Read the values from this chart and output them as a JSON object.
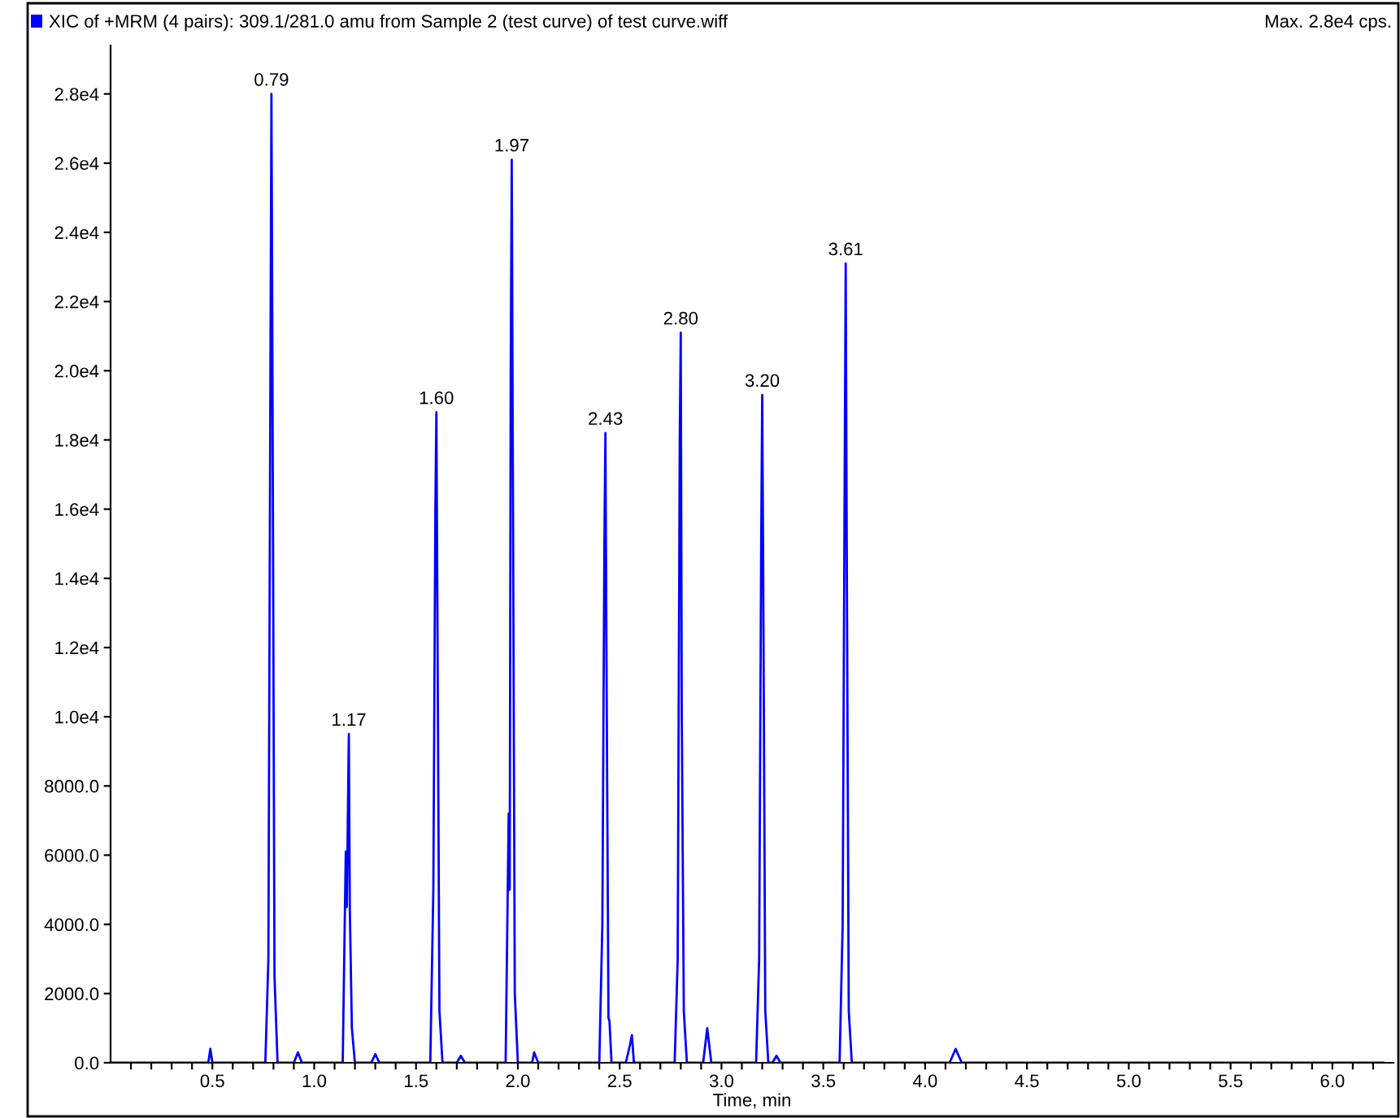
{
  "chart_data": {
    "type": "line",
    "title": "XIC of +MRM (4 pairs): 309.1/281.0 amu from Sample 2 (test curve) of test curve.wiff",
    "subtitle": "Max. 2.8e4 cps.",
    "xlabel": "Time, min",
    "x": [
      0.0,
      0.48,
      0.49,
      0.5,
      0.76,
      0.775,
      0.785,
      0.79,
      0.795,
      0.805,
      0.82,
      0.9,
      0.92,
      0.94,
      1.14,
      1.155,
      1.16,
      1.165,
      1.17,
      1.175,
      1.185,
      1.2,
      1.28,
      1.3,
      1.32,
      1.57,
      1.585,
      1.595,
      1.6,
      1.605,
      1.615,
      1.63,
      1.7,
      1.72,
      1.74,
      1.94,
      1.955,
      1.96,
      1.965,
      1.97,
      1.975,
      1.985,
      2.0,
      2.07,
      2.08,
      2.1,
      2.4,
      2.415,
      2.425,
      2.43,
      2.435,
      2.445,
      2.45,
      2.46,
      2.53,
      2.55,
      2.56,
      2.57,
      2.77,
      2.785,
      2.795,
      2.8,
      2.805,
      2.815,
      2.83,
      2.91,
      2.93,
      2.95,
      3.17,
      3.185,
      3.195,
      3.2,
      3.205,
      3.215,
      3.23,
      3.25,
      3.27,
      3.29,
      3.58,
      3.595,
      3.605,
      3.61,
      3.615,
      3.625,
      3.64,
      4.12,
      4.15,
      4.18,
      6.25
    ],
    "series": [
      {
        "color": "#0000ff",
        "values": [
          0,
          0,
          400,
          0,
          0,
          3000,
          20000,
          28000,
          20000,
          2500,
          0,
          0,
          300,
          0,
          0,
          6100,
          4500,
          7000,
          9500,
          4400,
          1000,
          0,
          0,
          250,
          0,
          0,
          5000,
          16000,
          18800,
          13000,
          1500,
          0,
          0,
          200,
          0,
          0,
          7200,
          5000,
          20000,
          26100,
          18000,
          2000,
          0,
          0,
          300,
          0,
          0,
          4000,
          15000,
          18200,
          12000,
          1300,
          1200,
          0,
          0,
          500,
          800,
          0,
          0,
          3000,
          18000,
          21100,
          10000,
          1500,
          0,
          0,
          1000,
          0,
          0,
          3000,
          15000,
          19300,
          14000,
          1500,
          0,
          0,
          200,
          0,
          0,
          4000,
          17000,
          23100,
          15000,
          1500,
          0,
          0,
          400,
          0,
          0
        ]
      }
    ],
    "annotations": [
      {
        "text": "0.79",
        "x": 0.79,
        "y": 28000
      },
      {
        "text": "1.17",
        "x": 1.17,
        "y": 9500
      },
      {
        "text": "1.60",
        "x": 1.6,
        "y": 18800
      },
      {
        "text": "1.97",
        "x": 1.97,
        "y": 26100
      },
      {
        "text": "2.43",
        "x": 2.43,
        "y": 18200
      },
      {
        "text": "2.80",
        "x": 2.8,
        "y": 21100
      },
      {
        "text": "3.20",
        "x": 3.2,
        "y": 19300
      },
      {
        "text": "3.61",
        "x": 3.61,
        "y": 23100
      }
    ],
    "xlim": [
      0,
      6.3
    ],
    "xticks": [
      {
        "value": 0.1,
        "label": null
      },
      {
        "value": 0.2,
        "label": null
      },
      {
        "value": 0.3,
        "label": null
      },
      {
        "value": 0.4,
        "label": null
      },
      {
        "value": 0.5,
        "label": "0.5"
      },
      {
        "value": 0.6,
        "label": null
      },
      {
        "value": 0.7,
        "label": null
      },
      {
        "value": 0.8,
        "label": null
      },
      {
        "value": 0.9,
        "label": null
      },
      {
        "value": 1.0,
        "label": "1.0"
      },
      {
        "value": 1.1,
        "label": null
      },
      {
        "value": 1.2,
        "label": null
      },
      {
        "value": 1.3,
        "label": null
      },
      {
        "value": 1.4,
        "label": null
      },
      {
        "value": 1.5,
        "label": "1.5"
      },
      {
        "value": 1.6,
        "label": null
      },
      {
        "value": 1.7,
        "label": null
      },
      {
        "value": 1.8,
        "label": null
      },
      {
        "value": 1.9,
        "label": null
      },
      {
        "value": 2.0,
        "label": "2.0"
      },
      {
        "value": 2.1,
        "label": null
      },
      {
        "value": 2.2,
        "label": null
      },
      {
        "value": 2.3,
        "label": null
      },
      {
        "value": 2.4,
        "label": null
      },
      {
        "value": 2.5,
        "label": "2.5"
      },
      {
        "value": 2.6,
        "label": null
      },
      {
        "value": 2.7,
        "label": null
      },
      {
        "value": 2.8,
        "label": null
      },
      {
        "value": 2.9,
        "label": null
      },
      {
        "value": 3.0,
        "label": "3.0"
      },
      {
        "value": 3.1,
        "label": null
      },
      {
        "value": 3.2,
        "label": null
      },
      {
        "value": 3.3,
        "label": null
      },
      {
        "value": 3.4,
        "label": null
      },
      {
        "value": 3.5,
        "label": "3.5"
      },
      {
        "value": 3.6,
        "label": null
      },
      {
        "value": 3.7,
        "label": null
      },
      {
        "value": 3.8,
        "label": null
      },
      {
        "value": 3.9,
        "label": null
      },
      {
        "value": 4.0,
        "label": "4.0"
      },
      {
        "value": 4.1,
        "label": null
      },
      {
        "value": 4.2,
        "label": null
      },
      {
        "value": 4.3,
        "label": null
      },
      {
        "value": 4.4,
        "label": null
      },
      {
        "value": 4.5,
        "label": "4.5"
      },
      {
        "value": 4.6,
        "label": null
      },
      {
        "value": 4.7,
        "label": null
      },
      {
        "value": 4.8,
        "label": null
      },
      {
        "value": 4.9,
        "label": null
      },
      {
        "value": 5.0,
        "label": "5.0"
      },
      {
        "value": 5.1,
        "label": null
      },
      {
        "value": 5.2,
        "label": null
      },
      {
        "value": 5.3,
        "label": null
      },
      {
        "value": 5.4,
        "label": null
      },
      {
        "value": 5.5,
        "label": "5.5"
      },
      {
        "value": 5.6,
        "label": null
      },
      {
        "value": 5.7,
        "label": null
      },
      {
        "value": 5.8,
        "label": null
      },
      {
        "value": 5.9,
        "label": null
      },
      {
        "value": 6.0,
        "label": "6.0"
      },
      {
        "value": 6.1,
        "label": null
      },
      {
        "value": 6.2,
        "label": null
      }
    ],
    "ylim": [
      0,
      29400
    ],
    "yticks": [
      {
        "value": 0,
        "label": "0.0"
      },
      {
        "value": 2000,
        "label": "2000.0"
      },
      {
        "value": 4000,
        "label": "4000.0"
      },
      {
        "value": 6000,
        "label": "6000.0"
      },
      {
        "value": 8000,
        "label": "8000.0"
      },
      {
        "value": 10000,
        "label": "1.0e4"
      },
      {
        "value": 12000,
        "label": "1.2e4"
      },
      {
        "value": 14000,
        "label": "1.4e4"
      },
      {
        "value": 16000,
        "label": "1.6e4"
      },
      {
        "value": 18000,
        "label": "1.8e4"
      },
      {
        "value": 20000,
        "label": "2.0e4"
      },
      {
        "value": 22000,
        "label": "2.2e4"
      },
      {
        "value": 24000,
        "label": "2.4e4"
      },
      {
        "value": 26000,
        "label": "2.6e4"
      },
      {
        "value": 28000,
        "label": "2.8e4"
      }
    ],
    "grid": false,
    "marker": "none",
    "line_style": "solid"
  }
}
